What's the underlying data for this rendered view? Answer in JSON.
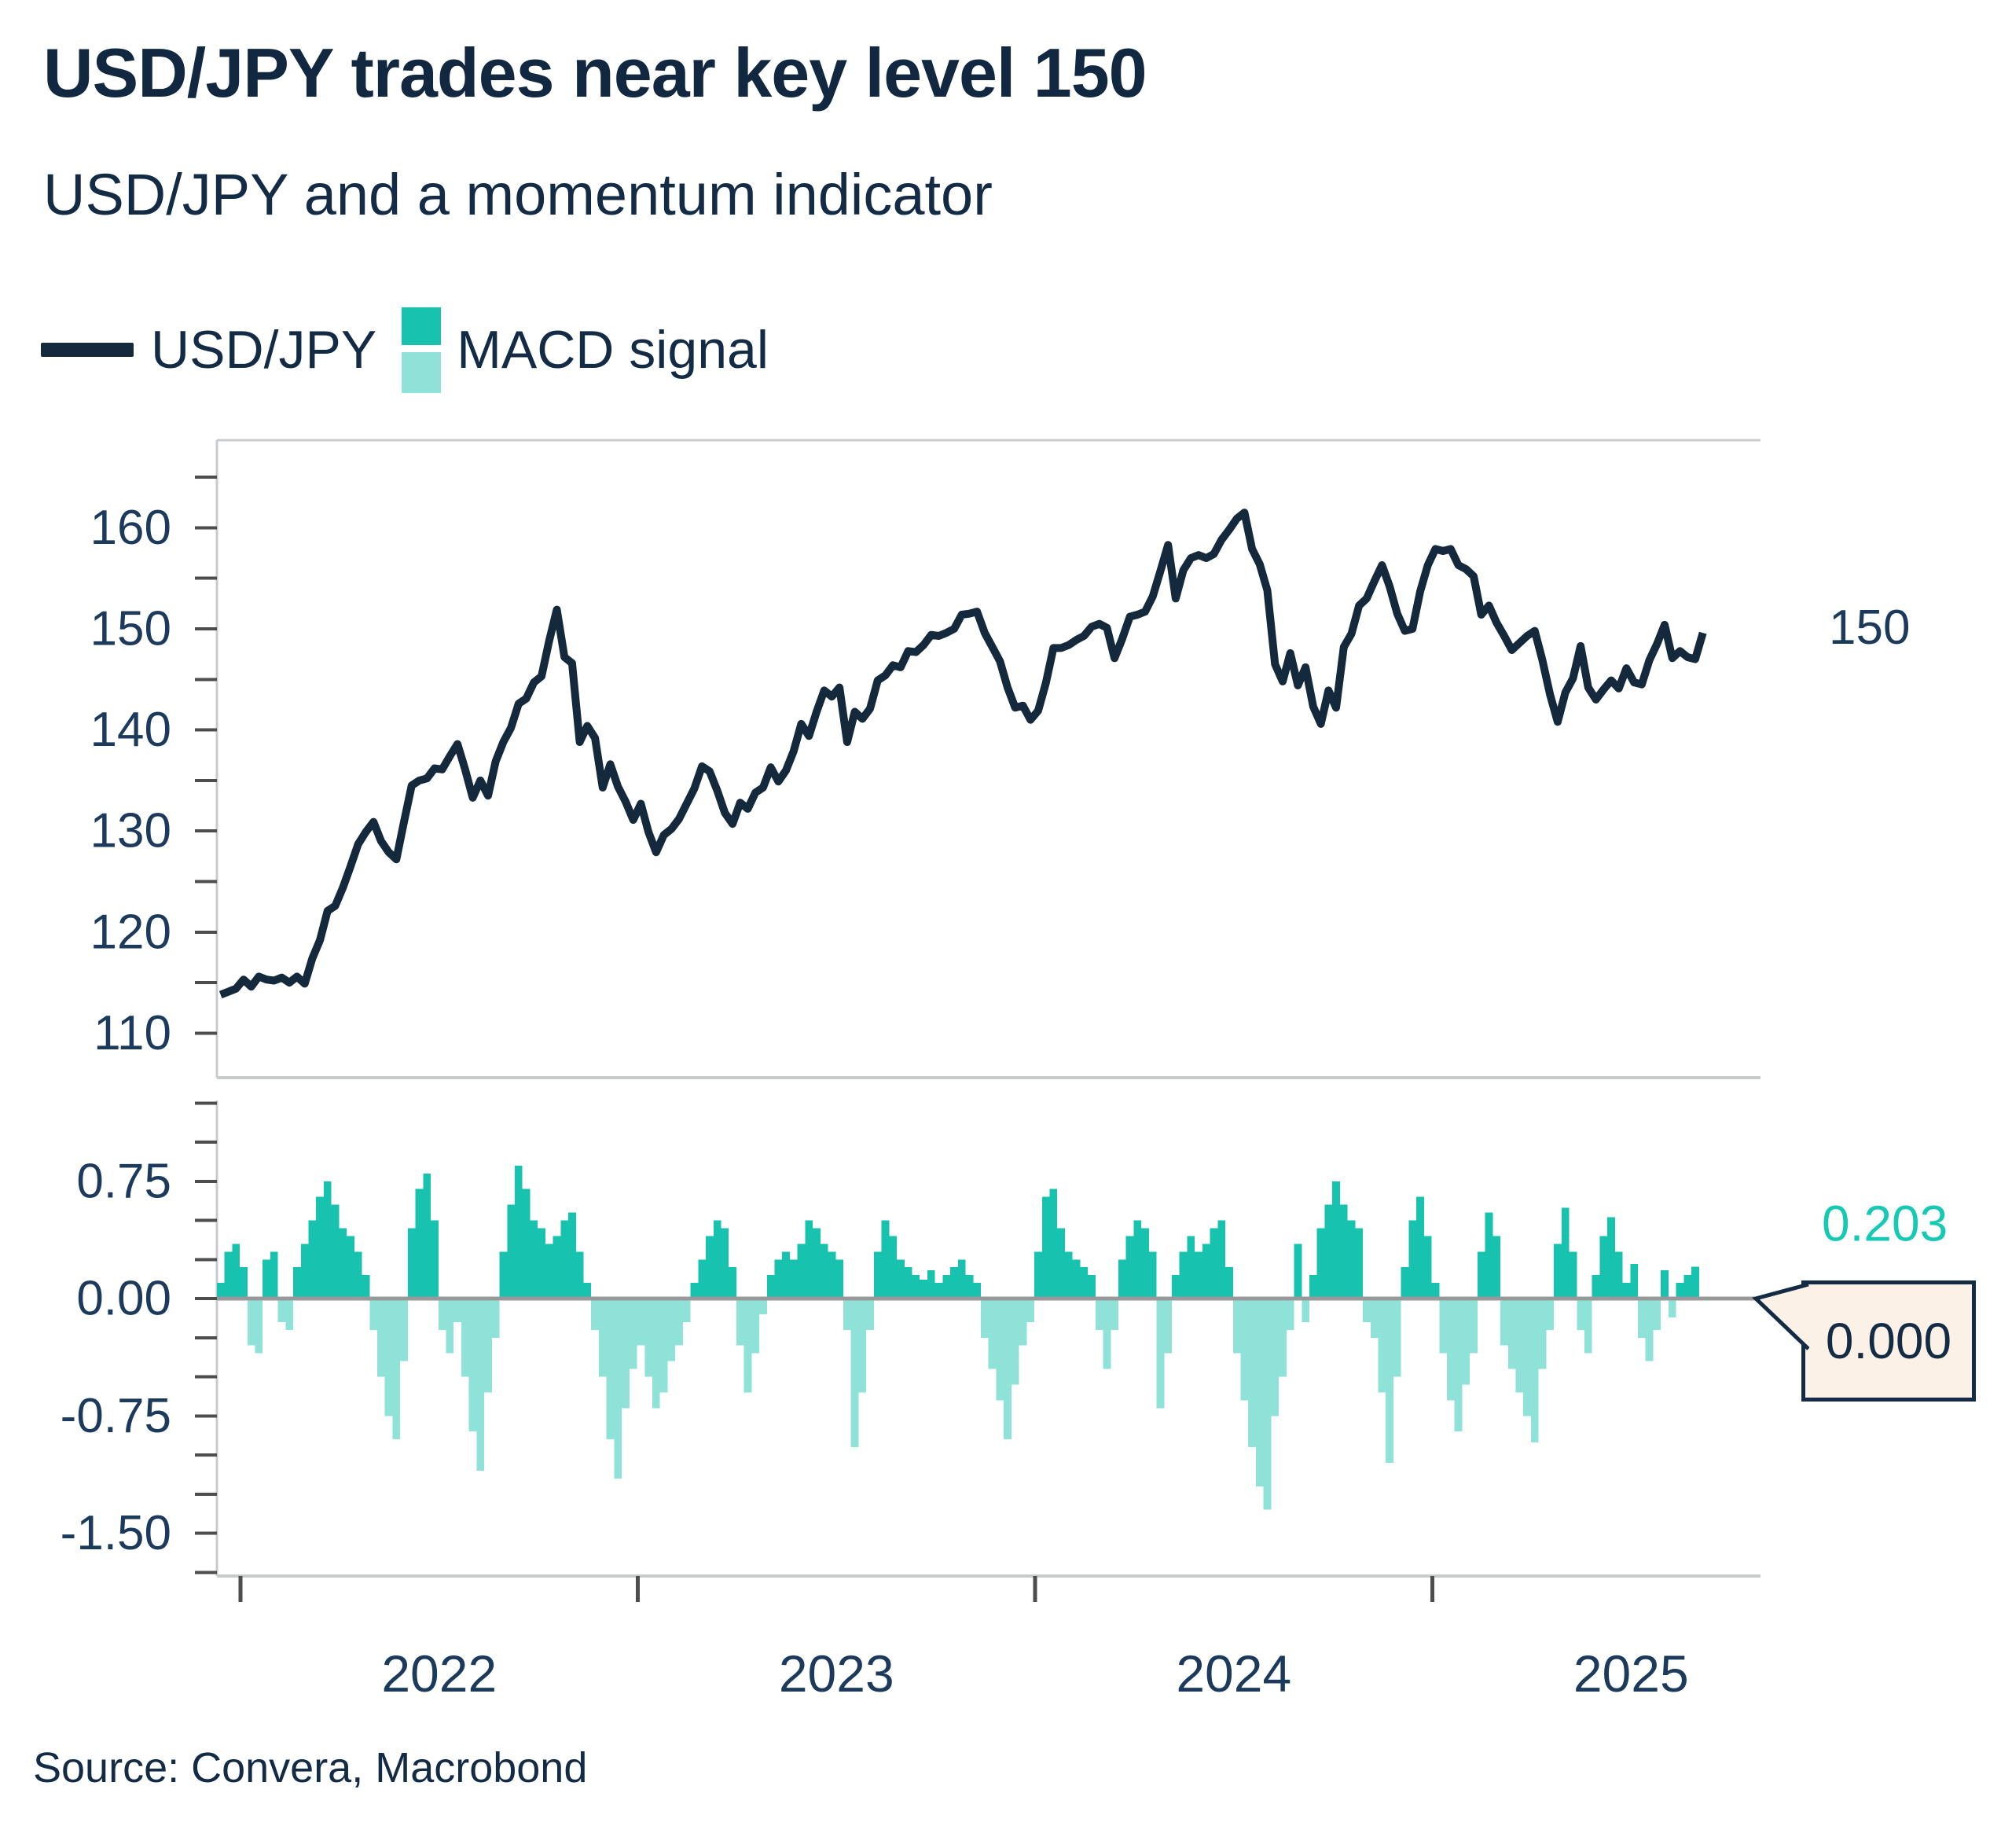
{
  "header": {
    "title": "USD/JPY trades near key level 150",
    "subtitle": "USD/JPY and a momentum indicator"
  },
  "legend": {
    "items": [
      {
        "label": "USD/JPY",
        "swatch_color": "#14293C"
      },
      {
        "label": "MACD signal",
        "swatch_color_positive": "#17C3AE",
        "swatch_color_negative": "#8FE2D8"
      }
    ]
  },
  "annotations": {
    "price_level": "150",
    "macd_latest": "0.203",
    "zero_label": "0.000"
  },
  "footer": {
    "source": "Source: Convera, Macrobond"
  },
  "colors": {
    "text_navy": "#132B45",
    "axis_label": "#1C3A5C",
    "line": "#14293C",
    "macd_positive": "#17C3AE",
    "macd_negative": "#8FE2D8",
    "macd_label_teal": "#15C9B4",
    "zero_line": "#999999",
    "frame": "#C8CBCD",
    "tick": "#4D4D4D",
    "callout_bg": "#FBF1E6"
  },
  "chart_data": {
    "type": "line",
    "title": "USD/JPY trades near key level 150",
    "subtitle": "USD/JPY and a momentum indicator",
    "legend_position": "top-left",
    "grid": false,
    "x_axis": {
      "tick_years": [
        2022,
        2023,
        2024,
        2025
      ],
      "year_labels": [
        "2022",
        "2023",
        "2024",
        "2025"
      ],
      "range_years": [
        2021.94,
        2025.83
      ]
    },
    "price_axis": {
      "ylim": [
        105.6,
        168.7
      ],
      "tick_step": 5,
      "tick_min": 110,
      "tick_max": 165,
      "label_values": [
        110,
        120,
        130,
        140,
        150,
        160
      ]
    },
    "macd_axis": {
      "ylim": [
        -1.774,
        1.266
      ],
      "tick_step": 0.25,
      "tick_min": -1.75,
      "tick_max": 1.25,
      "label_values": [
        0.75,
        0.0,
        -0.75,
        -1.5
      ]
    },
    "series": [
      {
        "name": "USD/JPY",
        "panel": "price",
        "type": "line",
        "start_year": 2021.95,
        "step_years": 0.019231,
        "values": [
          113.8,
          114.1,
          114.4,
          115.3,
          114.6,
          115.6,
          115.3,
          115.2,
          115.5,
          115.0,
          115.6,
          114.9,
          117.4,
          119.2,
          122.1,
          122.6,
          124.4,
          126.5,
          128.7,
          129.9,
          130.9,
          129.0,
          127.9,
          127.2,
          130.9,
          134.5,
          135.0,
          135.2,
          136.2,
          136.1,
          137.4,
          138.6,
          136.1,
          133.3,
          135.0,
          133.5,
          136.9,
          138.8,
          140.2,
          142.6,
          143.1,
          144.7,
          145.3,
          148.8,
          151.9,
          147.2,
          146.6,
          138.8,
          140.4,
          139.2,
          134.3,
          136.6,
          134.4,
          132.9,
          131.1,
          132.7,
          129.9,
          127.9,
          129.6,
          130.2,
          131.2,
          132.7,
          134.2,
          136.4,
          135.9,
          134.0,
          131.8,
          130.7,
          132.8,
          132.2,
          133.8,
          134.3,
          136.3,
          134.9,
          136.0,
          137.9,
          140.6,
          139.4,
          141.8,
          143.9,
          143.3,
          144.2,
          138.8,
          141.8,
          141.1,
          142.1,
          144.9,
          145.4,
          146.4,
          146.2,
          147.8,
          147.7,
          148.4,
          149.4,
          149.3,
          149.6,
          150.0,
          151.4,
          151.5,
          151.7,
          149.6,
          148.2,
          146.8,
          144.2,
          142.2,
          142.4,
          141.0,
          141.9,
          144.6,
          148.1,
          148.1,
          148.4,
          148.9,
          149.3,
          150.2,
          150.5,
          150.1,
          147.1,
          149.0,
          151.2,
          151.4,
          151.7,
          153.2,
          155.7,
          158.3,
          153.0,
          155.8,
          157.0,
          157.3,
          157.0,
          157.4,
          158.8,
          159.8,
          160.9,
          161.5,
          157.9,
          156.4,
          153.8,
          146.5,
          144.8,
          147.6,
          144.4,
          146.2,
          142.3,
          140.6,
          143.9,
          142.2,
          148.2,
          149.5,
          152.3,
          153.0,
          154.7,
          156.3,
          154.2,
          151.5,
          149.8,
          150.0,
          153.7,
          156.3,
          157.9,
          157.7,
          157.9,
          156.3,
          155.9,
          155.2,
          151.4,
          152.3,
          150.6,
          149.3,
          147.9,
          148.6,
          149.3,
          149.8,
          146.9,
          143.5,
          140.8,
          143.7,
          145.1,
          148.3,
          144.2,
          143.0,
          144.0,
          144.9,
          144.1,
          146.1,
          144.7,
          144.5,
          146.9,
          148.5,
          150.4,
          147.1,
          147.8,
          147.2,
          147.0,
          149.6
        ]
      },
      {
        "name": "MACD signal",
        "panel": "macd",
        "type": "bar",
        "start_year": 2021.95,
        "step_years": 0.019231,
        "values": [
          0.1,
          0.3,
          0.35,
          0.2,
          -0.3,
          -0.35,
          0.25,
          0.3,
          -0.15,
          -0.2,
          0.2,
          0.35,
          0.5,
          0.65,
          0.75,
          0.6,
          0.45,
          0.4,
          0.3,
          0.15,
          -0.2,
          -0.5,
          -0.75,
          -0.9,
          -0.4,
          0.45,
          0.7,
          0.8,
          0.5,
          -0.2,
          -0.35,
          -0.15,
          -0.5,
          -0.85,
          -1.1,
          -0.6,
          -0.25,
          0.3,
          0.6,
          0.85,
          0.7,
          0.5,
          0.45,
          0.35,
          0.4,
          0.5,
          0.55,
          0.3,
          0.1,
          -0.2,
          -0.5,
          -0.9,
          -1.15,
          -0.7,
          -0.45,
          -0.3,
          -0.5,
          -0.7,
          -0.6,
          -0.4,
          -0.3,
          -0.15,
          0.1,
          0.25,
          0.4,
          0.5,
          0.45,
          0.2,
          -0.3,
          -0.6,
          -0.35,
          -0.1,
          0.15,
          0.25,
          0.3,
          0.25,
          0.35,
          0.5,
          0.45,
          0.35,
          0.3,
          0.25,
          -0.2,
          -0.95,
          -0.6,
          -0.2,
          0.3,
          0.5,
          0.4,
          0.25,
          0.2,
          0.15,
          0.12,
          0.18,
          0.1,
          0.15,
          0.2,
          0.25,
          0.15,
          0.1,
          -0.25,
          -0.45,
          -0.65,
          -0.9,
          -0.55,
          -0.3,
          -0.15,
          0.3,
          0.65,
          0.7,
          0.45,
          0.3,
          0.25,
          0.2,
          0.15,
          -0.2,
          -0.45,
          -0.2,
          0.25,
          0.4,
          0.5,
          0.45,
          0.3,
          -0.7,
          -0.35,
          0.15,
          0.3,
          0.4,
          0.3,
          0.35,
          0.45,
          0.5,
          0.2,
          -0.35,
          -0.65,
          -0.95,
          -1.2,
          -1.35,
          -0.75,
          -0.5,
          -0.2,
          0.35,
          -0.15,
          0.15,
          0.45,
          0.6,
          0.75,
          0.6,
          0.5,
          0.45,
          -0.15,
          -0.25,
          -0.6,
          -1.05,
          -0.5,
          0.2,
          0.5,
          0.65,
          0.4,
          0.1,
          -0.35,
          -0.65,
          -0.85,
          -0.55,
          -0.35,
          0.3,
          0.55,
          0.4,
          -0.3,
          -0.45,
          -0.6,
          -0.75,
          -0.92,
          -0.45,
          -0.2,
          0.35,
          0.58,
          0.3,
          -0.2,
          -0.35,
          0.15,
          0.4,
          0.52,
          0.3,
          0.1,
          0.22,
          -0.25,
          -0.4,
          -0.2,
          0.18,
          -0.12,
          0.1,
          0.15,
          0.203
        ]
      }
    ],
    "latest_values": {
      "macd": 0.203,
      "zero_reference": 0.0,
      "price_level_marker": 150
    }
  }
}
